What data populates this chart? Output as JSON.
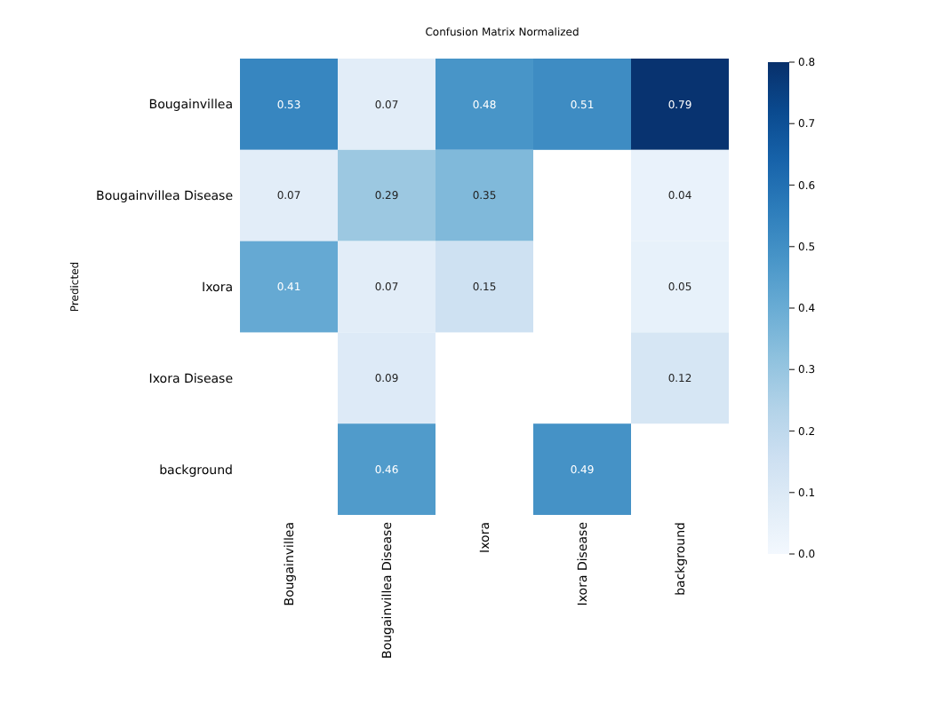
{
  "chart_data": {
    "type": "heatmap",
    "title": "Confusion Matrix Normalized",
    "ylabel": "Predicted",
    "categories": [
      "Bougainvillea",
      "Bougainvillea Disease",
      "Ixora",
      "Ixora Disease",
      "background"
    ],
    "y_categories": [
      "Bougainvillea",
      "Bougainvillea Disease",
      "Ixora",
      "Ixora Disease",
      "background"
    ],
    "cells": [
      [
        0.53,
        0.07,
        0.48,
        0.51,
        0.79
      ],
      [
        0.07,
        0.29,
        0.35,
        null,
        0.04
      ],
      [
        0.41,
        0.07,
        0.15,
        null,
        0.05
      ],
      [
        null,
        0.09,
        null,
        null,
        0.12
      ],
      [
        null,
        0.46,
        null,
        0.49,
        null
      ]
    ],
    "data_labels": true,
    "clim": [
      0,
      0.8
    ],
    "cticks": [
      {
        "value": 0,
        "label": "0.0"
      },
      {
        "value": 0.1,
        "label": "0.1"
      },
      {
        "value": 0.2,
        "label": "0.2"
      },
      {
        "value": 0.3,
        "label": "0.3"
      },
      {
        "value": 0.4,
        "label": "0.4"
      },
      {
        "value": 0.5,
        "label": "0.5"
      },
      {
        "value": 0.6,
        "label": "0.6"
      },
      {
        "value": 0.7,
        "label": "0.7"
      },
      {
        "value": 0.8,
        "label": "0.8"
      }
    ]
  }
}
